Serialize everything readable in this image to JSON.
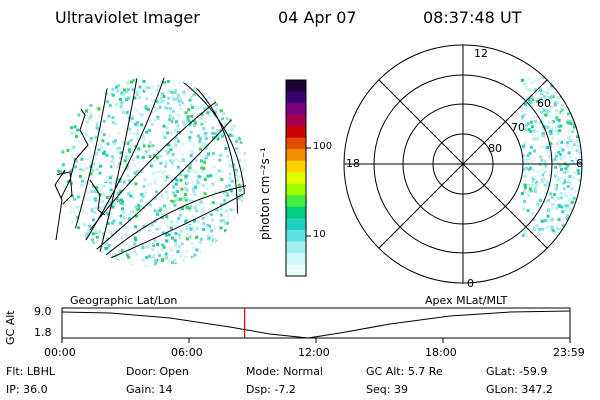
{
  "header": {
    "instrument": "Ultraviolet Imager",
    "date": "04 Apr 07",
    "time": "08:37:48 UT"
  },
  "colorbar": {
    "label": "photon cm⁻²s⁻¹",
    "ticks": [
      "100",
      "10"
    ],
    "colors": [
      "#1a0033",
      "#3a0070",
      "#7a007a",
      "#a80050",
      "#cc0000",
      "#e05000",
      "#f09000",
      "#ffd000",
      "#e0ff00",
      "#a0ff00",
      "#40f040",
      "#00d080",
      "#20d0c0",
      "#60e0e0",
      "#a0f0f0",
      "#d0f8f8",
      "#e8ffff"
    ]
  },
  "polar_plot": {
    "labels": {
      "top": "12",
      "bottom": "0",
      "left": "18",
      "right": "6"
    },
    "lat_labels": [
      "60",
      "70",
      "80"
    ]
  },
  "timeline": {
    "left_title": "Geographic Lat/Lon",
    "right_title": "Apex MLat/MLT",
    "y_label": "GC Alt",
    "y_ticks": [
      "9.0",
      "1.8"
    ],
    "x_ticks": [
      "00:00",
      "06:00",
      "12:00",
      "18:00",
      "23:59"
    ],
    "current_time_fraction": 0.3596,
    "marker_color": "#cc0000"
  },
  "footer": {
    "row1": [
      {
        "key": "Flt:",
        "val": "LBHL"
      },
      {
        "key": "Door:",
        "val": "Open"
      },
      {
        "key": "Mode:",
        "val": "Normal"
      },
      {
        "key": "GC Alt:",
        "val": "5.7 Re"
      },
      {
        "key": "GLat:",
        "val": "-59.9"
      }
    ],
    "row2": [
      {
        "key": "IP:",
        "val": "36.0"
      },
      {
        "key": "Gain:",
        "val": "14"
      },
      {
        "key": "Dsp:",
        "val": "-7.2"
      },
      {
        "key": "Seq:",
        "val": "39"
      },
      {
        "key": "GLon:",
        "val": "347.2"
      }
    ]
  }
}
